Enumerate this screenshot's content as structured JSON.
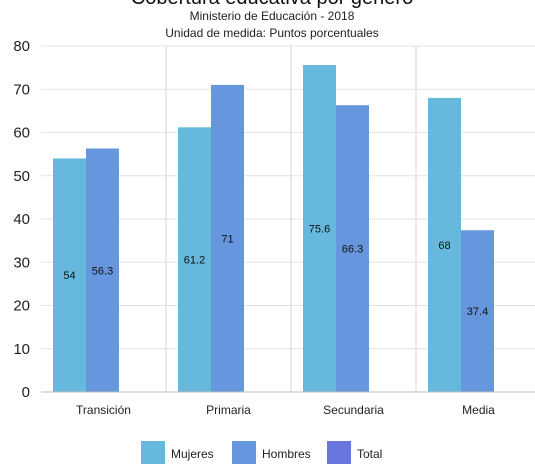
{
  "chart_data": {
    "type": "bar",
    "title": "Cobertura educativa por género",
    "subtitle_1": "Ministerio de Educación - 2018",
    "subtitle_2": "Unidad de medida: Puntos porcentuales",
    "categories": [
      "Transición",
      "Primaria",
      "Secundaria",
      "Media"
    ],
    "series": [
      {
        "name": "Mujeres",
        "color": "#66b8dd",
        "values": [
          54,
          61.2,
          75.6,
          68
        ]
      },
      {
        "name": "Hombres",
        "color": "#6696de",
        "values": [
          56.3,
          71,
          66.3,
          37.4
        ]
      },
      {
        "name": "Total",
        "color": "#6877e0",
        "values": [
          null,
          null,
          null,
          null
        ]
      }
    ],
    "ylim": [
      0,
      80
    ],
    "yticks": [
      0,
      10,
      20,
      30,
      40,
      50,
      60,
      70,
      80
    ],
    "grid": true,
    "legend_position": "bottom"
  }
}
